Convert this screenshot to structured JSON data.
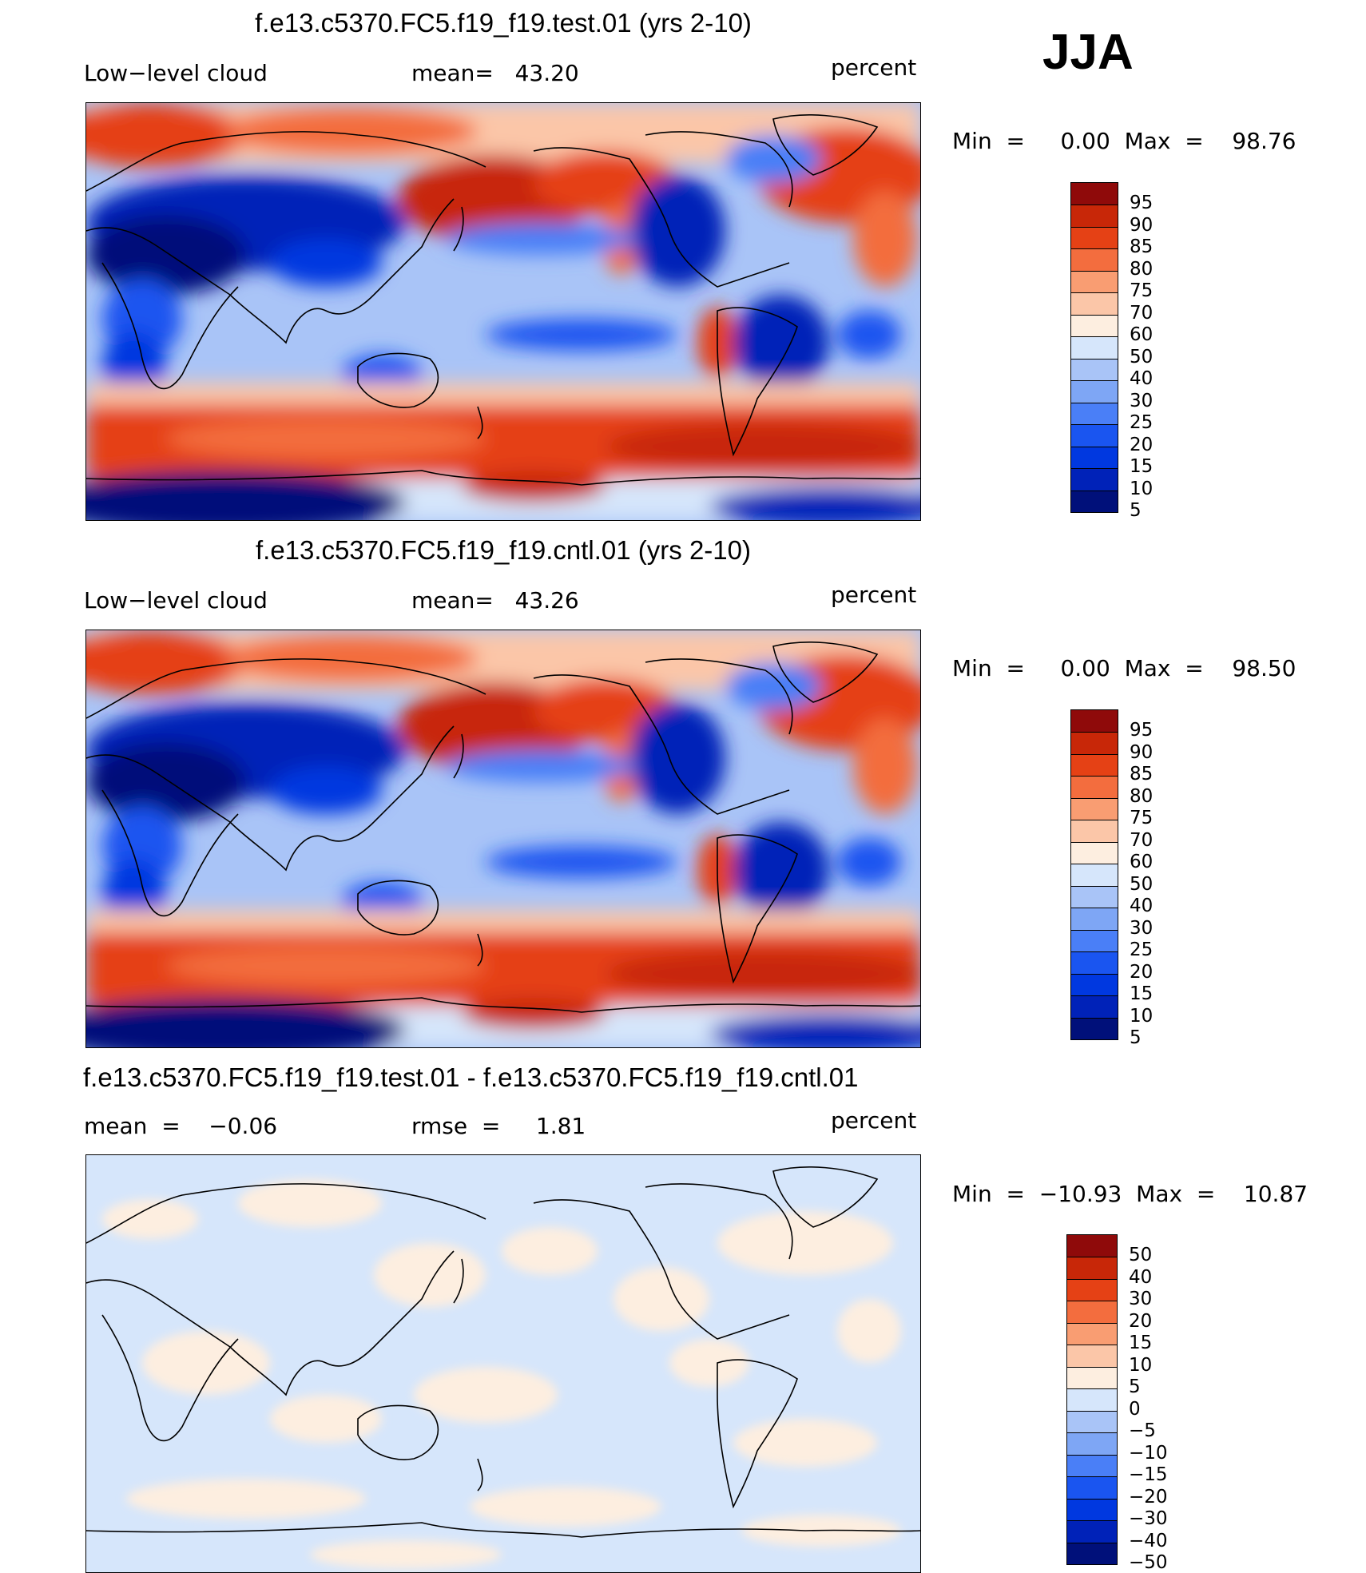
{
  "season": "JJA",
  "colors": {
    "full": [
      "#00107a",
      "#0022b8",
      "#0038e0",
      "#1a55f0",
      "#4a7ff7",
      "#7ea6f5",
      "#a9c4f7",
      "#d6e6fb",
      "#fdeee0",
      "#fbc6a8",
      "#f99d72",
      "#f36d3e",
      "#e54115",
      "#c82708",
      "#8f0a0a"
    ],
    "diff": [
      "#00107a",
      "#0022b8",
      "#0038e0",
      "#1a55f0",
      "#4a7ff7",
      "#7ea6f5",
      "#a9c4f7",
      "#d6e6fb",
      "#fdeee0",
      "#fbc6a8",
      "#f99d72",
      "#f36d3e",
      "#e54115",
      "#c82708",
      "#8f0a0a"
    ]
  },
  "panels": [
    {
      "title": "f.e13.c5370.FC5.f19_f19.test.01 (yrs 2-10)",
      "left_label": "Low−level cloud",
      "mid_label": "mean=   43.20",
      "units": "percent",
      "minmax": "Min  =     0.00  Max  =    98.76",
      "colorbar_labels": [
        "95",
        "90",
        "85",
        "80",
        "75",
        "70",
        "60",
        "50",
        "40",
        "30",
        "25",
        "20",
        "15",
        "10",
        "5"
      ],
      "variant": "full"
    },
    {
      "title": "f.e13.c5370.FC5.f19_f19.cntl.01 (yrs 2-10)",
      "left_label": "Low−level cloud",
      "mid_label": "mean=   43.26",
      "units": "percent",
      "minmax": "Min  =     0.00  Max  =    98.50",
      "colorbar_labels": [
        "95",
        "90",
        "85",
        "80",
        "75",
        "70",
        "60",
        "50",
        "40",
        "30",
        "25",
        "20",
        "15",
        "10",
        "5"
      ],
      "variant": "full"
    },
    {
      "title": "f.e13.c5370.FC5.f19_f19.test.01 - f.e13.c5370.FC5.f19_f19.cntl.01",
      "left_label": "mean  =    −0.06",
      "mid_label": "rmse  =     1.81",
      "units": "percent",
      "minmax": "Min  =  −10.93  Max  =    10.87",
      "colorbar_labels": [
        "50",
        "40",
        "30",
        "20",
        "15",
        "10",
        "5",
        "0",
        "−5",
        "−10",
        "−15",
        "−20",
        "−30",
        "−40",
        "−50"
      ],
      "variant": "diff"
    }
  ]
}
